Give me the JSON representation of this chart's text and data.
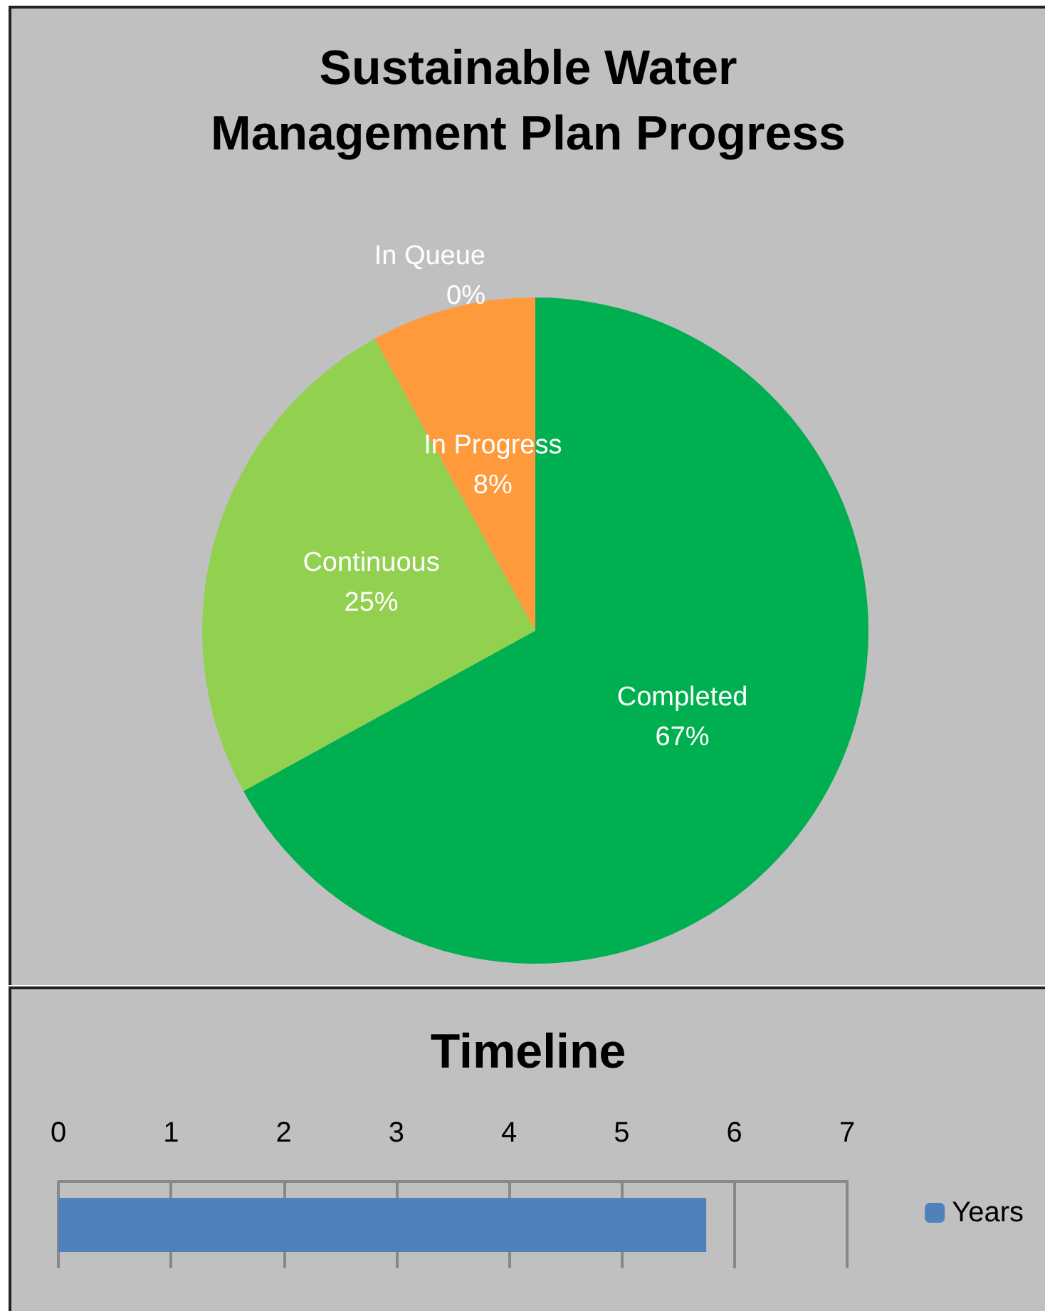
{
  "chart_data": [
    {
      "type": "pie",
      "title": "Sustainable Water\nManagement Plan Progress",
      "categories": [
        "Completed",
        "Continuous",
        "In Progress",
        "In Queue"
      ],
      "values": [
        67,
        25,
        8,
        0
      ],
      "colors": [
        "#00b050",
        "#92d050",
        "#ff9a3c",
        "#ffc000"
      ],
      "value_labels": [
        "67%",
        "25%",
        "8%",
        "0%"
      ],
      "legend": false
    },
    {
      "type": "bar",
      "title": "Timeline",
      "orientation": "horizontal",
      "categories": [
        null
      ],
      "series": [
        {
          "name": "Years",
          "color": "#4f81bd",
          "values": [
            5.75
          ]
        }
      ],
      "xlim": [
        0,
        7
      ],
      "xticks": [
        0,
        1,
        2,
        3,
        4,
        5,
        6,
        7
      ],
      "grid": "x",
      "legend": "right"
    }
  ]
}
